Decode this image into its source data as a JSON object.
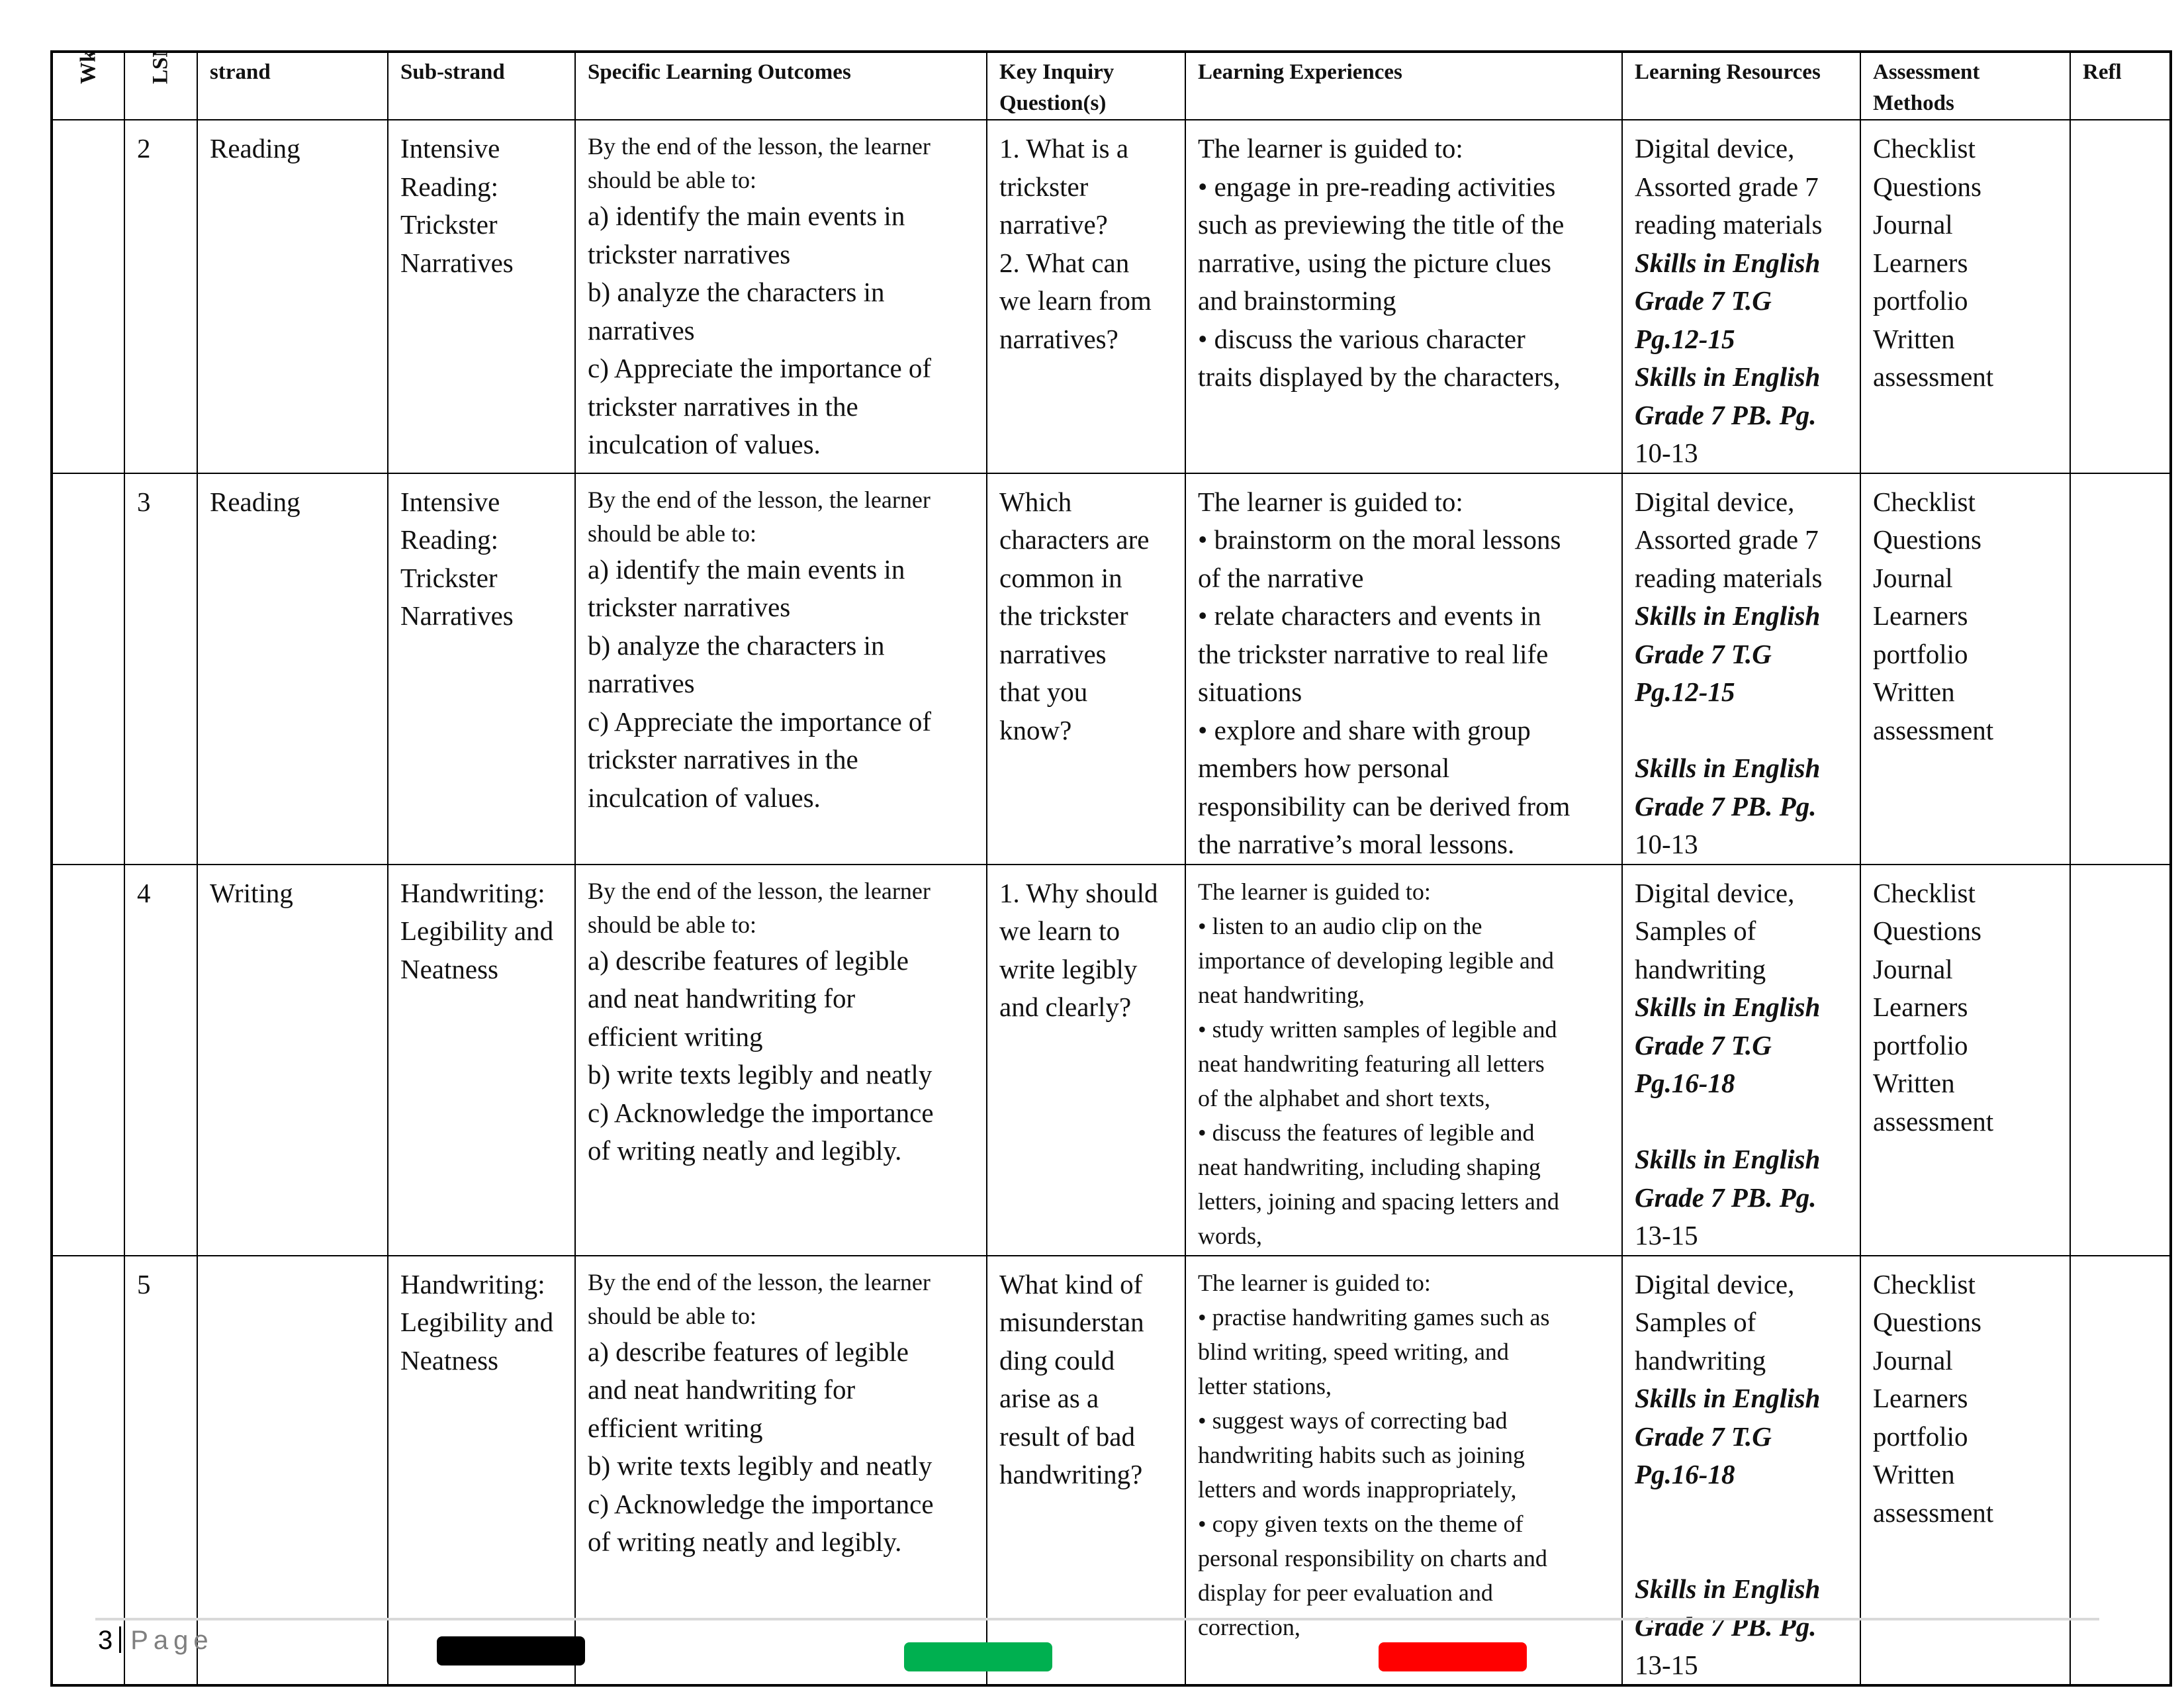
{
  "headers": [
    "Wk",
    "LSN",
    "strand",
    "Sub-strand",
    "Specific Learning Outcomes",
    "Key Inquiry Question(s)",
    "Learning Experiences",
    "Learning Resources",
    "Assessment Methods",
    "Refl"
  ],
  "rows": [
    {
      "wk": [],
      "lsn": [
        "2"
      ],
      "strand": [
        "Reading"
      ],
      "substrand": [
        "Intensive",
        "Reading:",
        "Trickster",
        "Narratives"
      ],
      "outcomes": [
        {
          "t": "By the end of the lesson, the learner",
          "c": "small"
        },
        {
          "t": "should be able to:",
          "c": "small"
        },
        "a) identify the main events in",
        "trickster narratives",
        "b) analyze the characters in",
        "narratives",
        "c) Appreciate the importance of",
        "trickster narratives in the",
        "inculcation of values."
      ],
      "kiq": [
        "1. What is a",
        "trickster",
        "narrative?",
        "2. What can",
        "we learn from",
        "narratives?"
      ],
      "experiences": [
        "The learner is guided to:",
        "• engage in pre-reading activities",
        "such as previewing the title of the",
        "narrative, using the picture clues",
        "and brainstorming",
        "• discuss the various character",
        "traits displayed by the characters,"
      ],
      "exp_small": false,
      "resources": [
        "Digital device,",
        "Assorted grade 7",
        "reading materials",
        {
          "t": "Skills in English",
          "c": "bi"
        },
        {
          "t": "Grade 7 T.G",
          "c": "bi"
        },
        {
          "t": "Pg.12-15",
          "c": "bi"
        },
        {
          "t": "Skills in English",
          "c": "bi"
        },
        {
          "t": "Grade 7 PB. Pg.",
          "c": "bi"
        },
        "10-13"
      ],
      "assessment": [
        "Checklist",
        "Questions",
        "Journal",
        "Learners",
        "portfolio",
        "Written",
        "assessment"
      ],
      "refl": []
    },
    {
      "wk": [],
      "lsn": [
        "3"
      ],
      "strand": [
        "Reading"
      ],
      "substrand": [
        "Intensive",
        "Reading:",
        "Trickster",
        "Narratives"
      ],
      "outcomes": [
        {
          "t": "By the end of the lesson, the learner",
          "c": "small"
        },
        {
          "t": "should be able to:",
          "c": "small"
        },
        "a) identify the main events in",
        "trickster narratives",
        "b) analyze the characters in",
        "narratives",
        "c) Appreciate the importance of",
        "trickster narratives in the",
        "inculcation of values."
      ],
      "kiq": [
        " Which",
        "characters are",
        "common in",
        "the trickster",
        "narratives",
        "that you",
        "know?"
      ],
      "experiences": [
        "The learner is guided to:",
        "• brainstorm on the moral lessons",
        "of the narrative",
        "• relate characters and events in",
        "the trickster narrative to real life",
        "situations",
        "• explore and share with group",
        "members how personal",
        "responsibility can be derived from",
        "the narrative’s moral lessons."
      ],
      "exp_small": false,
      "resources": [
        "Digital device,",
        "Assorted grade 7",
        "reading materials",
        {
          "t": "Skills in English",
          "c": "bi"
        },
        {
          "t": "Grade 7 T.G",
          "c": "bi"
        },
        {
          "t": "Pg.12-15",
          "c": "bi"
        },
        "",
        {
          "t": "Skills in English",
          "c": "bi"
        },
        {
          "t": "Grade 7 PB. Pg.",
          "c": "bi"
        },
        "10-13"
      ],
      "assessment": [
        "Checklist",
        "Questions",
        "Journal",
        "Learners",
        "portfolio",
        "Written",
        "assessment"
      ],
      "refl": []
    },
    {
      "wk": [],
      "lsn": [
        "4"
      ],
      "strand": [
        "Writing"
      ],
      "substrand": [
        "Handwriting:",
        "Legibility and",
        "Neatness"
      ],
      "outcomes": [
        {
          "t": "By the end of the lesson, the learner",
          "c": "small"
        },
        {
          "t": "should be able to:",
          "c": "small"
        },
        "a) describe features of legible",
        "and neat handwriting for",
        "efficient writing",
        "b) write texts legibly and neatly",
        "c) Acknowledge the importance",
        "of writing neatly and legibly."
      ],
      "kiq": [
        "1. Why should",
        "we learn to",
        "write legibly",
        "and clearly?"
      ],
      "experiences": [
        "The learner is guided to:",
        "• listen to an audio clip on the",
        "importance of developing legible and",
        "neat handwriting,",
        "• study written samples of legible and",
        "neat handwriting featuring all letters",
        "of the alphabet and short texts,",
        "• discuss the features of legible and",
        "neat handwriting, including shaping",
        "letters, joining and spacing letters and",
        "words,"
      ],
      "exp_small": true,
      "resources": [
        "Digital device,",
        "Samples of",
        "handwriting",
        {
          "t": "Skills in English",
          "c": "bi"
        },
        {
          "t": "Grade 7 T.G",
          "c": "bi"
        },
        {
          "t": "Pg.16-18",
          "c": "bi"
        },
        "",
        {
          "t": "Skills in English",
          "c": "bi"
        },
        {
          "t": "Grade 7 PB. Pg.",
          "c": "bi"
        },
        "13-15"
      ],
      "assessment": [
        "Checklist",
        "Questions",
        "Journal",
        "Learners",
        "portfolio",
        "Written",
        "assessment"
      ],
      "refl": []
    },
    {
      "wk": [],
      "lsn": [
        "5"
      ],
      "strand": [],
      "substrand": [
        "Handwriting:",
        "Legibility and",
        "Neatness"
      ],
      "outcomes": [
        {
          "t": "By the end of the lesson, the learner",
          "c": "small"
        },
        {
          "t": "should be able to:",
          "c": "small"
        },
        "a) describe features of legible",
        "and neat handwriting for",
        "efficient writing",
        "b) write texts legibly and neatly",
        "c) Acknowledge the importance",
        "of writing neatly and legibly."
      ],
      "kiq": [
        "What kind of",
        "misunderstan",
        "ding could",
        "arise as a",
        "result of bad",
        "handwriting?"
      ],
      "experiences": [
        "The learner is guided to:",
        "• practise handwriting games such as",
        "blind writing, speed writing, and",
        "letter stations,",
        "• suggest ways of correcting bad",
        "handwriting habits such as joining",
        "letters and words inappropriately,",
        "• copy given texts on the theme of",
        "personal responsibility on charts and",
        "display for peer evaluation and",
        "correction,"
      ],
      "exp_small": true,
      "resources": [
        "Digital device,",
        "Samples of",
        "handwriting",
        {
          "t": "Skills in English",
          "c": "bi"
        },
        {
          "t": "Grade 7 T.G",
          "c": "bi"
        },
        {
          "t": "Pg.16-18",
          "c": "bi"
        },
        "",
        "",
        {
          "t": "Skills in English",
          "c": "bi"
        },
        {
          "t": "Grade 7 PB. Pg.",
          "c": "bi"
        },
        "13-15"
      ],
      "assessment": [
        "Checklist",
        "Questions",
        "Journal",
        "Learners",
        "portfolio",
        "Written",
        "assessment"
      ],
      "refl": []
    }
  ],
  "footer": {
    "page_number": "3",
    "page_label": "Page"
  },
  "swatches": [
    "#000000",
    "#00b050",
    "#ff0000"
  ]
}
